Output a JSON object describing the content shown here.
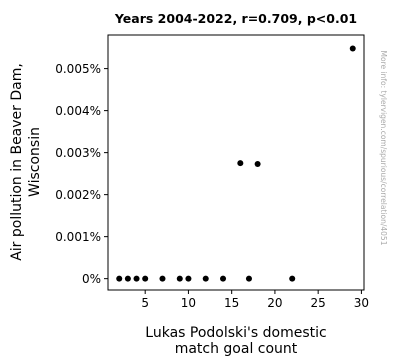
{
  "chart_data": {
    "type": "scatter",
    "title": "Years 2004-2022, r=0.709, p<0.01",
    "xlabel_lines": [
      "Lukas Podolski's domestic",
      "match goal count"
    ],
    "ylabel_lines": [
      "Air pollution in Beaver Dam,",
      "Wisconsin"
    ],
    "watermark": "More info: tylervigen.com/spurious/correlation/4051",
    "xlim": [
      0.7,
      30.3
    ],
    "ylim": [
      -0.00027,
      0.0058
    ],
    "x_ticks": [
      5,
      10,
      15,
      20,
      25,
      30
    ],
    "x_tick_labels": [
      "5",
      "10",
      "15",
      "20",
      "25",
      "30"
    ],
    "y_ticks": [
      0,
      0.001,
      0.002,
      0.003,
      0.004,
      0.005
    ],
    "y_tick_labels": [
      "0%",
      "0.001%",
      "0.002%",
      "0.003%",
      "0.004%",
      "0.005%"
    ],
    "grid": false,
    "marker_color": "#000000",
    "points": [
      {
        "x": 2,
        "y": 0
      },
      {
        "x": 3,
        "y": 0
      },
      {
        "x": 4,
        "y": 0
      },
      {
        "x": 5,
        "y": 0
      },
      {
        "x": 7,
        "y": 0
      },
      {
        "x": 9,
        "y": 0
      },
      {
        "x": 10,
        "y": 0
      },
      {
        "x": 12,
        "y": 0
      },
      {
        "x": 14,
        "y": 0
      },
      {
        "x": 16,
        "y": 0.00275
      },
      {
        "x": 17,
        "y": 0
      },
      {
        "x": 18,
        "y": 0.00273
      },
      {
        "x": 22,
        "y": 0
      },
      {
        "x": 29,
        "y": 0.00548
      }
    ]
  }
}
